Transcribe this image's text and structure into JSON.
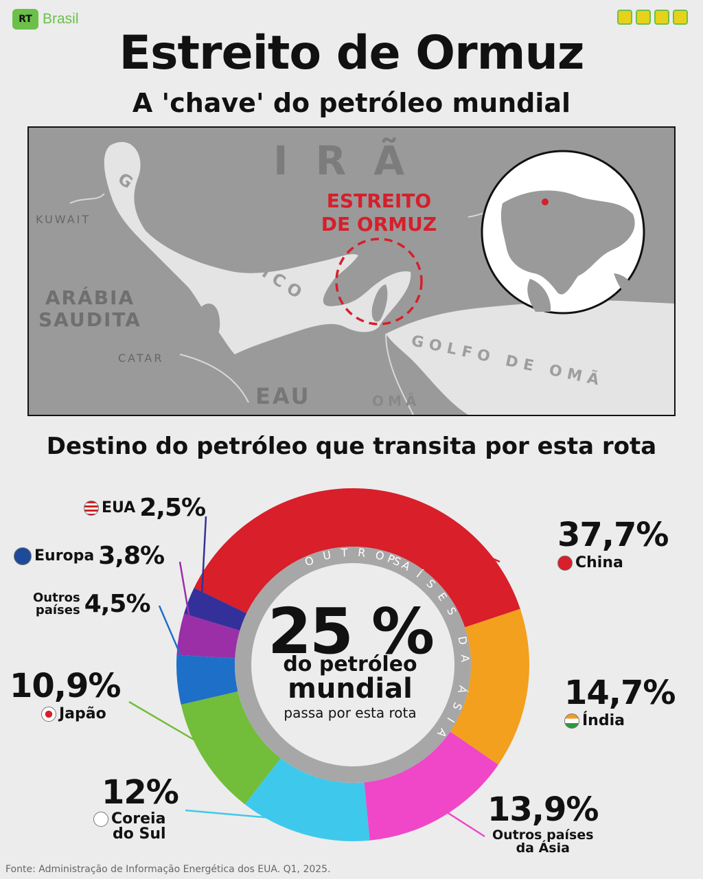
{
  "header": {
    "brand_logo": "RT",
    "brand_name": "Brasil",
    "title": "Estreito de Ormuz",
    "subtitle": "A 'chave' do petróleo mundial"
  },
  "map": {
    "labels": {
      "ira": "IRÃ",
      "estreito_line1": "ESTREITO",
      "estreito_line2": "DE ORMUZ",
      "kuwait": "KUWAIT",
      "arabia_line1": "ARÁBIA",
      "arabia_line2": "SAUDITA",
      "catar": "CATAR",
      "eau": "EAU",
      "oma": "OMÃ",
      "golfo_persico": "GOLFO PÉRSICO",
      "golfo_oma": "GOLFO DE OMÃ"
    },
    "colors": {
      "land": "#9a9a9a",
      "sea": "#e6e6e6",
      "highlight": "#d51f2b"
    }
  },
  "chart_heading": "Destino do petróleo que transita por esta rota",
  "center": {
    "big": "25 %",
    "line1": "do petróleo",
    "line2": "mundial",
    "line3": "passa por esta rota",
    "ring_left": "OUTROS",
    "ring_right": "PAÍSES DA ÁSIA"
  },
  "chart_data": {
    "type": "pie",
    "title": "Destino do petróleo que transita por esta rota",
    "slices": [
      {
        "label": "China",
        "value": 37.7,
        "value_text": "37,7%",
        "color": "#d81f2a",
        "flag": "china-flag-icon"
      },
      {
        "label": "Índia",
        "value": 14.7,
        "value_text": "14,7%",
        "color": "#f2a01e",
        "flag": "india-flag-icon"
      },
      {
        "label": "Outros países da Ásia",
        "value": 13.9,
        "value_text": "13,9%",
        "color": "#ef47c8"
      },
      {
        "label": "Coreia do Sul",
        "value": 12,
        "value_text": "12%",
        "color": "#3ec9ec",
        "flag": "south-korea-flag-icon"
      },
      {
        "label": "Japão",
        "value": 10.9,
        "value_text": "10,9%",
        "color": "#72bd3a",
        "flag": "japan-flag-icon"
      },
      {
        "label": "Outros países",
        "value": 4.5,
        "value_text": "4,5%",
        "color": "#1e6fc8"
      },
      {
        "label": "Europa",
        "value": 3.8,
        "value_text": "3,8%",
        "color": "#9a2fa8",
        "flag": "eu-flag-icon"
      },
      {
        "label": "EUA",
        "value": 2.5,
        "value_text": "2,5%",
        "color": "#34309a",
        "flag": "usa-flag-icon"
      }
    ],
    "labels_display": {
      "china_val": "37,7%",
      "china_name": "China",
      "india_val": "14,7%",
      "india_name": "Índia",
      "asia_val": "13,9%",
      "asia_name_1": "Outros países",
      "asia_name_2": "da Ásia",
      "korea_val": "12%",
      "korea_name_1": "Coreia",
      "korea_name_2": "do Sul",
      "japan_val": "10,9%",
      "japan_name": "Japão",
      "outros_val": "4,5%",
      "outros_name_1": "Outros",
      "outros_name_2": "países",
      "europa_val": "3,8%",
      "europa_name": "Europa",
      "eua_val": "2,5%",
      "eua_name": "EUA"
    }
  },
  "source": "Fonte: Administração de Informação Energética dos EUA. Q1, 2025."
}
